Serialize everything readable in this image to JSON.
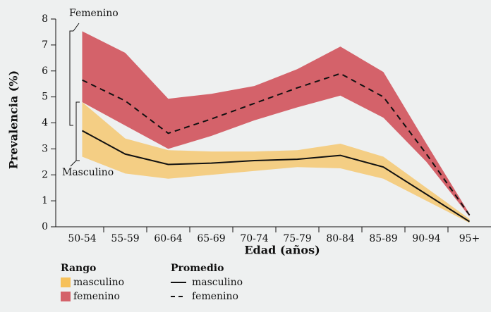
{
  "chart_data": {
    "type": "band-line",
    "xlabel": "Edad (años)",
    "ylabel": "Prevalencia (%)",
    "categories": [
      "50-54",
      "55-59",
      "60-64",
      "65-69",
      "70-74",
      "75-79",
      "80-84",
      "85-89",
      "90-94",
      "95+"
    ],
    "ylim": [
      0,
      8
    ],
    "yticks": [
      0,
      1,
      2,
      3,
      4,
      5,
      6,
      7,
      8
    ],
    "range_title": "Rango",
    "mean_title": "Promedio",
    "ranges": [
      {
        "name": "femenino",
        "color": "#d4626a",
        "upper": [
          7.53,
          6.7,
          4.93,
          5.12,
          5.42,
          6.07,
          6.94,
          5.96,
          3.2,
          0.5
        ],
        "lower": [
          4.8,
          3.9,
          3.0,
          3.5,
          4.1,
          4.6,
          5.05,
          4.2,
          2.5,
          0.4
        ]
      },
      {
        "name": "masculino",
        "color": "#f6c15a",
        "upper": [
          4.8,
          3.4,
          2.95,
          2.9,
          2.9,
          2.95,
          3.2,
          2.7,
          1.5,
          0.3
        ],
        "lower": [
          2.7,
          2.05,
          1.85,
          2.0,
          2.15,
          2.3,
          2.25,
          1.85,
          1.0,
          0.15
        ]
      }
    ],
    "means": [
      {
        "name": "masculino",
        "color": "#111111",
        "dash": false,
        "values": [
          3.7,
          2.8,
          2.4,
          2.45,
          2.55,
          2.6,
          2.75,
          2.3,
          1.25,
          0.2
        ]
      },
      {
        "name": "femenino",
        "color": "#111111",
        "dash": true,
        "values": [
          5.65,
          4.85,
          3.6,
          4.15,
          4.75,
          5.35,
          5.9,
          5.0,
          2.8,
          0.45
        ]
      }
    ],
    "annotations": [
      "Femenino",
      "Masculino"
    ]
  }
}
